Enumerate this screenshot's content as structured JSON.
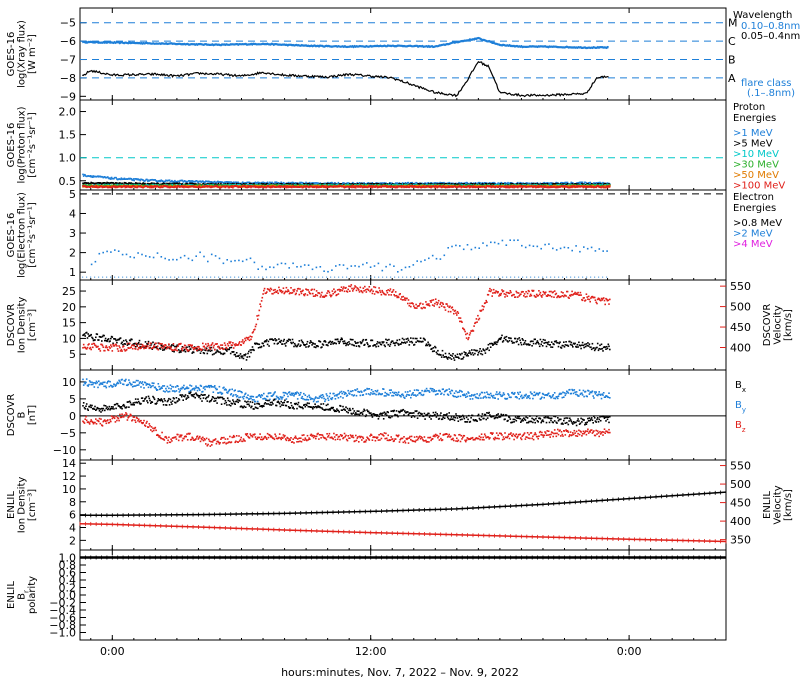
{
  "x_axis": {
    "tick_labels": [
      "0:00",
      "12:00",
      "0:00"
    ],
    "tick_hours": [
      0,
      12,
      24
    ],
    "range_hours": [
      -1.5,
      28.5
    ],
    "label": "hours:minutes, Nov.  7, 2022 – Nov.  9, 2022"
  },
  "chart_data": [
    {
      "id": "xray",
      "type": "line",
      "ylabel": [
        "GOES-16",
        "log(Xray flux)",
        "[W m⁻²]"
      ],
      "ylim": [
        -9.2,
        -4.2
      ],
      "yticks": [
        -5,
        -6,
        -7,
        -8,
        -9
      ],
      "ytick_labels": [
        "−5",
        "−6",
        "−7",
        "−8",
        "−9"
      ],
      "flare_levels": [
        {
          "class": "M",
          "value": -5
        },
        {
          "class": "C",
          "value": -6
        },
        {
          "class": "B",
          "value": -7
        },
        {
          "class": "A",
          "value": -8
        }
      ],
      "legend_title": "Wavelength",
      "series": [
        {
          "name": "0.10–0.8nm",
          "color": "#1e7fd8",
          "x": [
            -1.4,
            1,
            3,
            5,
            7,
            9,
            11,
            13,
            15,
            16,
            17,
            18,
            19,
            20,
            22,
            23.1
          ],
          "y": [
            -6.05,
            -6.1,
            -6.15,
            -6.2,
            -6.15,
            -6.25,
            -6.3,
            -6.25,
            -6.3,
            -6.05,
            -5.85,
            -6.2,
            -6.3,
            -6.3,
            -6.35,
            -6.35
          ]
        },
        {
          "name": "0.05–0.4nm",
          "color": "#000000",
          "x": [
            -1.4,
            -1,
            0,
            2,
            3,
            4,
            5,
            6,
            7,
            8,
            9,
            10,
            11,
            12,
            13,
            14,
            15,
            16,
            16.5,
            17,
            17.5,
            18,
            19,
            20,
            21,
            22,
            22.5,
            23.1
          ],
          "y": [
            -7.9,
            -7.6,
            -7.85,
            -7.8,
            -7.9,
            -7.75,
            -7.8,
            -7.9,
            -7.7,
            -7.85,
            -7.9,
            -7.95,
            -7.8,
            -7.9,
            -8.0,
            -8.4,
            -8.8,
            -8.95,
            -8.1,
            -7.1,
            -7.4,
            -8.8,
            -8.95,
            -8.95,
            -8.9,
            -8.85,
            -8.0,
            -7.9
          ]
        }
      ],
      "annotation": "flare class\n(.1–.8nm)"
    },
    {
      "id": "proton",
      "type": "scatter",
      "ylabel": [
        "GOES-16",
        "log(Proton flux)",
        "[cm⁻²s⁻¹sr⁻¹]"
      ],
      "ylim": [
        0.3,
        2.25
      ],
      "yticks": [
        2.0,
        1.5,
        1.0,
        0.5
      ],
      "ytick_labels": [
        "2.0",
        "1.5",
        "1.0",
        "0.5"
      ],
      "threshold": 1.0,
      "legend_title": "Proton\nEnergies",
      "series": [
        {
          "name": ">1 MeV",
          "color": "#1e7fd8",
          "x": [
            -1.4,
            0,
            2,
            4,
            6,
            8,
            10,
            12,
            14,
            16,
            18,
            20,
            22,
            23.1
          ],
          "y": [
            0.62,
            0.55,
            0.5,
            0.48,
            0.45,
            0.45,
            0.44,
            0.44,
            0.44,
            0.44,
            0.44,
            0.44,
            0.45,
            0.44
          ]
        },
        {
          "name": ">5 MeV",
          "color": "#000000",
          "x": [
            -1.4,
            2,
            6,
            10,
            14,
            18,
            23.1
          ],
          "y": [
            0.45,
            0.43,
            0.42,
            0.42,
            0.42,
            0.42,
            0.42
          ]
        },
        {
          "name": ">10 MeV",
          "color": "#00c8c8",
          "x": [
            -1.4,
            23.1
          ],
          "y": [
            0.4,
            0.4
          ]
        },
        {
          "name": ">30 MeV",
          "color": "#2cb02c",
          "x": [
            -1.4,
            23.1
          ],
          "y": [
            0.39,
            0.39
          ]
        },
        {
          "name": ">50 MeV",
          "color": "#e07b00",
          "x": [
            -1.4,
            23.1
          ],
          "y": [
            0.38,
            0.38
          ]
        },
        {
          "name": ">100 MeV",
          "color": "#e0201a",
          "x": [
            -1.4,
            23.1
          ],
          "y": [
            0.37,
            0.37
          ]
        }
      ]
    },
    {
      "id": "electron",
      "type": "scatter",
      "ylabel": [
        "GOES-16",
        "log(Electron flux)",
        "[cm⁻²s⁻¹sr⁻¹]"
      ],
      "ylim": [
        0.6,
        5.2
      ],
      "yticks": [
        5,
        4,
        3,
        2,
        1
      ],
      "ytick_labels": [
        "5",
        "4",
        "3",
        "2",
        "1"
      ],
      "threshold": 5.0,
      "legend_title": "Electron\nEnergies",
      "series": [
        {
          "name": ">0.8 MeV",
          "color": "#000000",
          "x": [],
          "y": []
        },
        {
          "name": ">2 MeV",
          "color": "#1e7fd8",
          "x": [
            -1,
            -0.5,
            0,
            1,
            2,
            3,
            4,
            5,
            6,
            7,
            8,
            9,
            10,
            11,
            12,
            13,
            14,
            15,
            16,
            17,
            18,
            19,
            20,
            21,
            22,
            23
          ],
          "y": [
            1.3,
            1.9,
            2.0,
            1.8,
            1.9,
            1.7,
            1.85,
            1.6,
            1.75,
            1.2,
            1.4,
            1.2,
            1.1,
            1.25,
            1.3,
            1.2,
            1.4,
            1.8,
            2.2,
            2.4,
            2.45,
            2.4,
            2.3,
            2.35,
            2.2,
            2.0
          ]
        },
        {
          "name": ">4 MeV",
          "color": "#e020e0",
          "x": [],
          "y": []
        }
      ]
    },
    {
      "id": "dscovr_plasma",
      "type": "scatter",
      "ylabel": [
        "DSCOVR",
        "Ion Density",
        "[cm⁻³]"
      ],
      "ylim": [
        0,
        28.5
      ],
      "yticks": [
        25,
        20,
        15,
        10,
        5
      ],
      "ytick_labels": [
        "25",
        "20",
        "15",
        "10",
        "5"
      ],
      "ylabel_right": [
        "DSCOVR",
        "Velocity",
        "[km/s]"
      ],
      "ylim_right": [
        345,
        565
      ],
      "yticks_right": [
        550,
        500,
        450,
        400
      ],
      "series": [
        {
          "name": "Density",
          "color": "#000000",
          "axis": "left",
          "x": [
            -1.4,
            -0.5,
            0.5,
            1.5,
            2.5,
            3.5,
            4.5,
            5.5,
            6.2,
            6.6,
            7.5,
            8.5,
            9.5,
            10.5,
            11.5,
            12.5,
            13.5,
            14.5,
            15.0,
            15.5,
            16.0,
            16.5,
            17.2,
            18.0,
            19.0,
            20.0,
            21.0,
            22.0,
            23.1
          ],
          "y": [
            11,
            10,
            9,
            8,
            7,
            6.5,
            6,
            6,
            4,
            7.5,
            9,
            8.5,
            8,
            9,
            8.5,
            8.5,
            9,
            9,
            6,
            4.5,
            4,
            5,
            6,
            10,
            9,
            8.5,
            8,
            7.5,
            7
          ]
        },
        {
          "name": "Velocity",
          "color": "#e0201a",
          "axis": "right",
          "x": [
            -1.4,
            -0.5,
            0.5,
            1.5,
            2.5,
            3.5,
            4.5,
            5.5,
            6.0,
            6.5,
            7.0,
            8.0,
            9.0,
            10.0,
            11.0,
            12.0,
            13.0,
            14.0,
            15.0,
            16.0,
            16.5,
            17.5,
            18.5,
            19.5,
            20.5,
            21.5,
            22.5,
            23.1
          ],
          "y": [
            405,
            400,
            400,
            405,
            402,
            400,
            402,
            405,
            410,
            430,
            535,
            540,
            535,
            530,
            545,
            540,
            535,
            500,
            510,
            485,
            420,
            535,
            530,
            532,
            530,
            528,
            515,
            510
          ]
        }
      ]
    },
    {
      "id": "dscovr_mag",
      "type": "scatter",
      "ylabel": [
        "DSCOVR",
        "B",
        "[nT]"
      ],
      "ylim": [
        -13,
        13.5
      ],
      "yticks": [
        10,
        5,
        0,
        -5,
        -10
      ],
      "ytick_labels": [
        "10",
        "5",
        "0",
        "−5",
        "−10"
      ],
      "zero_line": 0,
      "series": [
        {
          "name": "B",
          "sub": "x",
          "color": "#000000",
          "x": [
            -1.4,
            -0.5,
            0.5,
            1.5,
            2.5,
            3.5,
            4.5,
            5.5,
            6.5,
            7.5,
            8.5,
            9.5,
            10.5,
            11.5,
            12.5,
            13.5,
            14.5,
            15.5,
            16.5,
            17.5,
            18.5,
            19.5,
            20.5,
            21.5,
            22.5,
            23.1
          ],
          "y": [
            3,
            2,
            3,
            5,
            4,
            6,
            5,
            4,
            3,
            4,
            3,
            3,
            2,
            1,
            0,
            1,
            0,
            0,
            -1,
            0,
            -1,
            -1,
            -1,
            -2,
            -1,
            -1
          ]
        },
        {
          "name": "B",
          "sub": "y",
          "color": "#1e7fd8",
          "x": [
            -1.4,
            -0.5,
            0.5,
            1.5,
            2.5,
            3.5,
            4.5,
            5.5,
            6.5,
            7.5,
            8.5,
            9.5,
            10.5,
            11.5,
            12.5,
            13.5,
            14.5,
            15.5,
            16.5,
            17.5,
            18.5,
            19.5,
            20.5,
            21.5,
            22.5,
            23.1
          ],
          "y": [
            10,
            9,
            10,
            9,
            8,
            8,
            8,
            7,
            5,
            6,
            6,
            5,
            6,
            7,
            7,
            6,
            7,
            7,
            6,
            6,
            6,
            6,
            6,
            7,
            6,
            6
          ]
        },
        {
          "name": "B",
          "sub": "z",
          "color": "#e0201a",
          "x": [
            -1.4,
            -0.5,
            0.5,
            1.5,
            2.5,
            3.5,
            4.5,
            5.5,
            6.5,
            7.5,
            8.5,
            9.5,
            10.5,
            11.5,
            12.5,
            13.5,
            14.5,
            15.5,
            16.5,
            17.5,
            18.5,
            19.5,
            20.5,
            21.5,
            22.5,
            23.1
          ],
          "y": [
            -1,
            -2,
            0,
            -2,
            -7,
            -6,
            -8,
            -7,
            -6,
            -6,
            -7,
            -6,
            -6,
            -7,
            -6,
            -7,
            -7,
            -6,
            -7,
            -6,
            -6,
            -6,
            -5,
            -5,
            -5,
            -5
          ]
        }
      ]
    },
    {
      "id": "enlil_plasma",
      "type": "line",
      "ylabel": [
        "ENLIL",
        "Ion Density",
        "[cm⁻³]"
      ],
      "ylim": [
        0.5,
        14.5
      ],
      "yticks": [
        14,
        12,
        10,
        8,
        6,
        4,
        2
      ],
      "ytick_labels": [
        "14",
        "12",
        "10",
        "8",
        "6",
        "4",
        "2"
      ],
      "ylabel_right": [
        "ENLIL",
        "Velocity",
        "[km/s]"
      ],
      "ylim_right": [
        322,
        565
      ],
      "yticks_right": [
        550,
        500,
        450,
        400,
        350
      ],
      "series": [
        {
          "name": "Density",
          "color": "#000000",
          "axis": "left",
          "x": [
            -1.5,
            0,
            4,
            8,
            12,
            16,
            20,
            24,
            28.5
          ],
          "y": [
            5.9,
            5.9,
            6.0,
            6.2,
            6.5,
            6.9,
            7.6,
            8.5,
            9.5
          ]
        },
        {
          "name": "Velocity",
          "color": "#e0201a",
          "axis": "right",
          "x": [
            -1.5,
            0,
            4,
            8,
            12,
            16,
            20,
            24,
            28.5
          ],
          "y": [
            393,
            391,
            384,
            376,
            369,
            363,
            357,
            351,
            345
          ]
        }
      ]
    },
    {
      "id": "enlil_polarity",
      "type": "line",
      "ylabel": [
        "ENLIL",
        "B",
        "polarity"
      ],
      "ylabel_sub": "r",
      "ylim": [
        -1.2,
        1.2
      ],
      "yticks": [
        1.0,
        0.8,
        0.6,
        0.4,
        0.2,
        0.0,
        -0.2,
        -0.4,
        -0.6,
        -0.8,
        -1.0
      ],
      "ytick_labels": [
        "1.0",
        "0.8",
        "0.6",
        "0.4",
        "0.2",
        "0.0",
        "−0.2",
        "−0.4",
        "−0.6",
        "−0.8",
        "−1.0"
      ],
      "series": [
        {
          "name": "polarity",
          "color": "#000000",
          "x": [
            -1.5,
            28.5
          ],
          "y": [
            1.0,
            1.0
          ]
        }
      ]
    }
  ]
}
